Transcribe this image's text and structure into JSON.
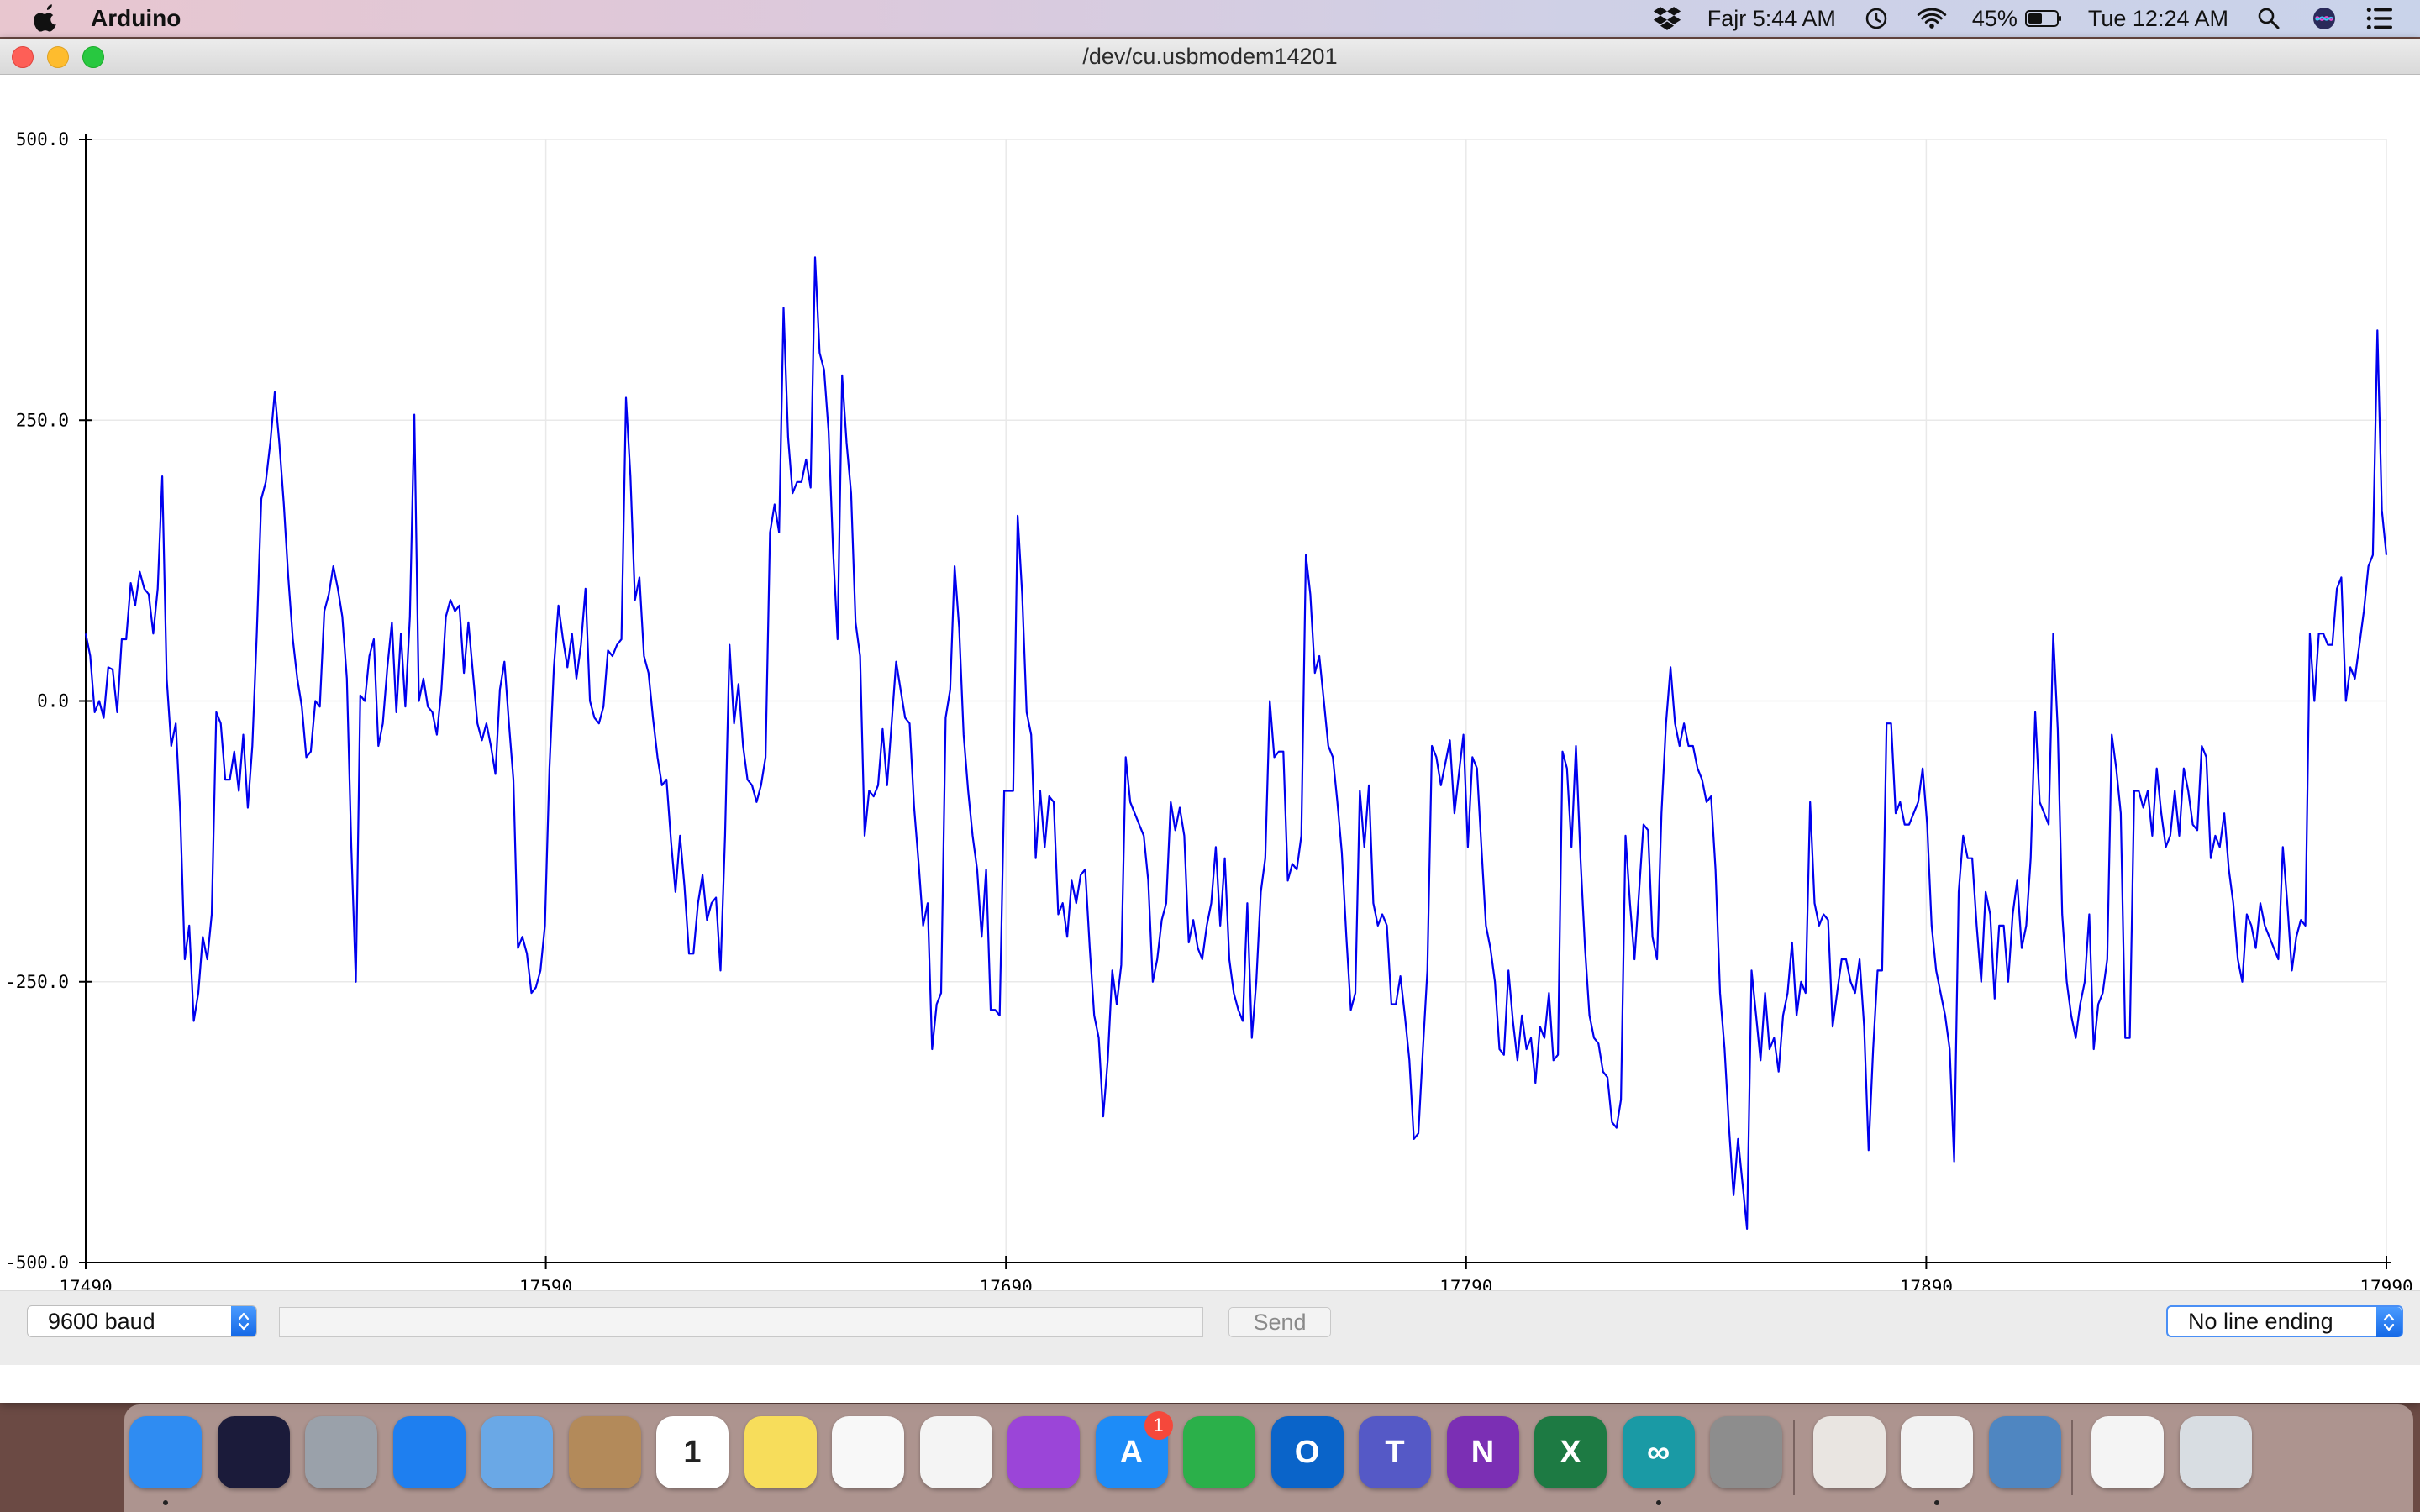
{
  "menubar": {
    "app_name": "Arduino",
    "prayer": "Fajr 5:44 AM",
    "battery": "45%",
    "clock": "Tue 12:24 AM"
  },
  "window": {
    "title": "/dev/cu.usbmodem14201"
  },
  "controls": {
    "baud": "9600 baud",
    "send_label": "Send",
    "serial_input_value": "",
    "line_ending": "No line ending"
  },
  "chart_data": {
    "type": "line",
    "xlim": [
      17490,
      17990
    ],
    "ylim": [
      -500,
      500
    ],
    "x_ticks": [
      "17490",
      "17590",
      "17690",
      "17790",
      "17890",
      "17990"
    ],
    "y_ticks": [
      "500.0",
      "250.0",
      "0.0",
      "-250.0",
      "-500.0"
    ],
    "grid": true,
    "series": [
      {
        "color": "#0000ee",
        "values": [
          60,
          40,
          -10,
          0,
          -15,
          30,
          28,
          -10,
          55,
          55,
          105,
          85,
          115,
          100,
          95,
          60,
          100,
          200,
          20,
          -40,
          -20,
          -100,
          -230,
          -200,
          -285,
          -260,
          -210,
          -230,
          -190,
          -10,
          -20,
          -70,
          -70,
          -45,
          -80,
          -30,
          -95,
          -40,
          60,
          180,
          195,
          230,
          275,
          230,
          175,
          110,
          55,
          20,
          -5,
          -50,
          -45,
          0,
          -5,
          80,
          95,
          120,
          100,
          75,
          20,
          -130,
          -250,
          5,
          0,
          40,
          55,
          -40,
          -20,
          30,
          70,
          -10,
          60,
          -5,
          75,
          255,
          0,
          20,
          -5,
          -10,
          -30,
          10,
          75,
          90,
          80,
          85,
          25,
          70,
          25,
          -20,
          -35,
          -20,
          -40,
          -65,
          10,
          35,
          -20,
          -70,
          -220,
          -210,
          -225,
          -260,
          -255,
          -240,
          -200,
          -60,
          30,
          85,
          55,
          30,
          60,
          20,
          50,
          100,
          0,
          -15,
          -20,
          -5,
          45,
          40,
          50,
          55,
          270,
          200,
          90,
          110,
          40,
          25,
          -15,
          -50,
          -75,
          -70,
          -125,
          -170,
          -120,
          -165,
          -225,
          -225,
          -180,
          -155,
          -195,
          -180,
          -175,
          -240,
          -120,
          50,
          -20,
          15,
          -40,
          -70,
          -75,
          -90,
          -75,
          -50,
          150,
          175,
          150,
          350,
          235,
          185,
          195,
          195,
          215,
          190,
          395,
          310,
          295,
          240,
          135,
          55,
          290,
          230,
          185,
          70,
          40,
          -120,
          -80,
          -85,
          -75,
          -25,
          -75,
          -20,
          35,
          10,
          -15,
          -20,
          -95,
          -145,
          -200,
          -180,
          -310,
          -270,
          -260,
          -15,
          10,
          120,
          65,
          -30,
          -80,
          -120,
          -150,
          -210,
          -150,
          -275,
          -275,
          -280,
          -80,
          -80,
          -80,
          165,
          95,
          -10,
          -30,
          -140,
          -80,
          -130,
          -85,
          -90,
          -190,
          -180,
          -210,
          -160,
          -180,
          -155,
          -150,
          -220,
          -280,
          -300,
          -370,
          -320,
          -240,
          -270,
          -235,
          -50,
          -90,
          -100,
          -110,
          -120,
          -160,
          -250,
          -230,
          -195,
          -180,
          -90,
          -115,
          -95,
          -120,
          -215,
          -195,
          -220,
          -230,
          -200,
          -180,
          -130,
          -200,
          -140,
          -230,
          -260,
          -275,
          -285,
          -180,
          -300,
          -250,
          -170,
          -140,
          0,
          -50,
          -45,
          -45,
          -160,
          -145,
          -150,
          -120,
          130,
          95,
          25,
          40,
          0,
          -40,
          -50,
          -90,
          -135,
          -210,
          -275,
          -260,
          -80,
          -130,
          -75,
          -180,
          -200,
          -190,
          -200,
          -270,
          -270,
          -245,
          -280,
          -320,
          -390,
          -385,
          -310,
          -240,
          -40,
          -50,
          -75,
          -55,
          -35,
          -100,
          -65,
          -30,
          -130,
          -50,
          -60,
          -130,
          -200,
          -220,
          -250,
          -310,
          -315,
          -240,
          -285,
          -320,
          -280,
          -310,
          -300,
          -340,
          -290,
          -300,
          -260,
          -320,
          -315,
          -45,
          -60,
          -130,
          -40,
          -140,
          -220,
          -280,
          -300,
          -305,
          -330,
          -335,
          -375,
          -380,
          -355,
          -120,
          -180,
          -230,
          -170,
          -110,
          -115,
          -210,
          -230,
          -100,
          -20,
          30,
          -20,
          -40,
          -20,
          -40,
          -40,
          -60,
          -70,
          -90,
          -85,
          -150,
          -260,
          -310,
          -380,
          -440,
          -390,
          -430,
          -470,
          -240,
          -280,
          -320,
          -260,
          -310,
          -300,
          -330,
          -280,
          -260,
          -215,
          -280,
          -250,
          -260,
          -90,
          -180,
          -200,
          -190,
          -195,
          -290,
          -260,
          -230,
          -230,
          -250,
          -260,
          -230,
          -290,
          -400,
          -310,
          -240,
          -240,
          -20,
          -20,
          -100,
          -90,
          -110,
          -110,
          -100,
          -90,
          -60,
          -110,
          -200,
          -240,
          -260,
          -280,
          -310,
          -410,
          -170,
          -120,
          -140,
          -140,
          -200,
          -250,
          -170,
          -190,
          -265,
          -200,
          -200,
          -250,
          -190,
          -160,
          -220,
          -200,
          -140,
          -10,
          -90,
          -100,
          -110,
          60,
          -25,
          -190,
          -250,
          -280,
          -300,
          -270,
          -250,
          -190,
          -310,
          -270,
          -260,
          -230,
          -30,
          -60,
          -100,
          -300,
          -300,
          -80,
          -80,
          -95,
          -80,
          -120,
          -60,
          -100,
          -130,
          -120,
          -80,
          -120,
          -60,
          -80,
          -110,
          -115,
          -40,
          -50,
          -140,
          -120,
          -130,
          -100,
          -150,
          -180,
          -230,
          -250,
          -190,
          -200,
          -220,
          -180,
          -200,
          -210,
          -220,
          -230,
          -130,
          -180,
          -240,
          -210,
          -195,
          -200,
          60,
          0,
          60,
          60,
          50,
          50,
          100,
          110,
          0,
          30,
          20,
          50,
          80,
          120,
          130,
          330,
          170,
          130
        ]
      }
    ]
  },
  "dock": {
    "items": [
      {
        "name": "finder",
        "label": "",
        "bg": "#2f8cf2"
      },
      {
        "name": "siri",
        "label": "",
        "bg": "#1b1b3a"
      },
      {
        "name": "launchpad",
        "label": "",
        "bg": "#9aa1aa"
      },
      {
        "name": "safari",
        "label": "",
        "bg": "#1e7ff0"
      },
      {
        "name": "mail",
        "label": "",
        "bg": "#6aa8e6"
      },
      {
        "name": "contacts",
        "label": "",
        "bg": "#b38a5a"
      },
      {
        "name": "calendar",
        "label": "1",
        "bg": "#ffffff",
        "fg": "#222222"
      },
      {
        "name": "notes",
        "label": "",
        "bg": "#f7dd5b"
      },
      {
        "name": "reminders",
        "label": "",
        "bg": "#f8f8f8"
      },
      {
        "name": "photos",
        "label": "",
        "bg": "#f4f4f4"
      },
      {
        "name": "podcasts",
        "label": "",
        "bg": "#9b45d8"
      },
      {
        "name": "app-store",
        "label": "A",
        "bg": "#1d8cf8",
        "badge": "1"
      },
      {
        "name": "app-green",
        "label": "",
        "bg": "#2bb04a"
      },
      {
        "name": "outlook",
        "label": "O",
        "bg": "#0a64c9"
      },
      {
        "name": "teams",
        "label": "T",
        "bg": "#5559c6"
      },
      {
        "name": "onenote",
        "label": "N",
        "bg": "#7b2fb4"
      },
      {
        "name": "excel",
        "label": "X",
        "bg": "#1d7a43"
      },
      {
        "name": "arduino",
        "label": "∞",
        "bg": "#1a9aa5"
      },
      {
        "name": "system-preferences",
        "label": "",
        "bg": "#8d8d8d"
      },
      {
        "name": "photo-slideshow",
        "label": "",
        "bg": "#e9e5e1"
      },
      {
        "name": "chrome",
        "label": "",
        "bg": "#f2f2f2"
      },
      {
        "name": "preview",
        "label": "",
        "bg": "#4f86c1"
      },
      {
        "name": "documents",
        "label": "",
        "bg": "#f4f4f4"
      },
      {
        "name": "trash",
        "label": "",
        "bg": "#d8dde2"
      }
    ]
  }
}
